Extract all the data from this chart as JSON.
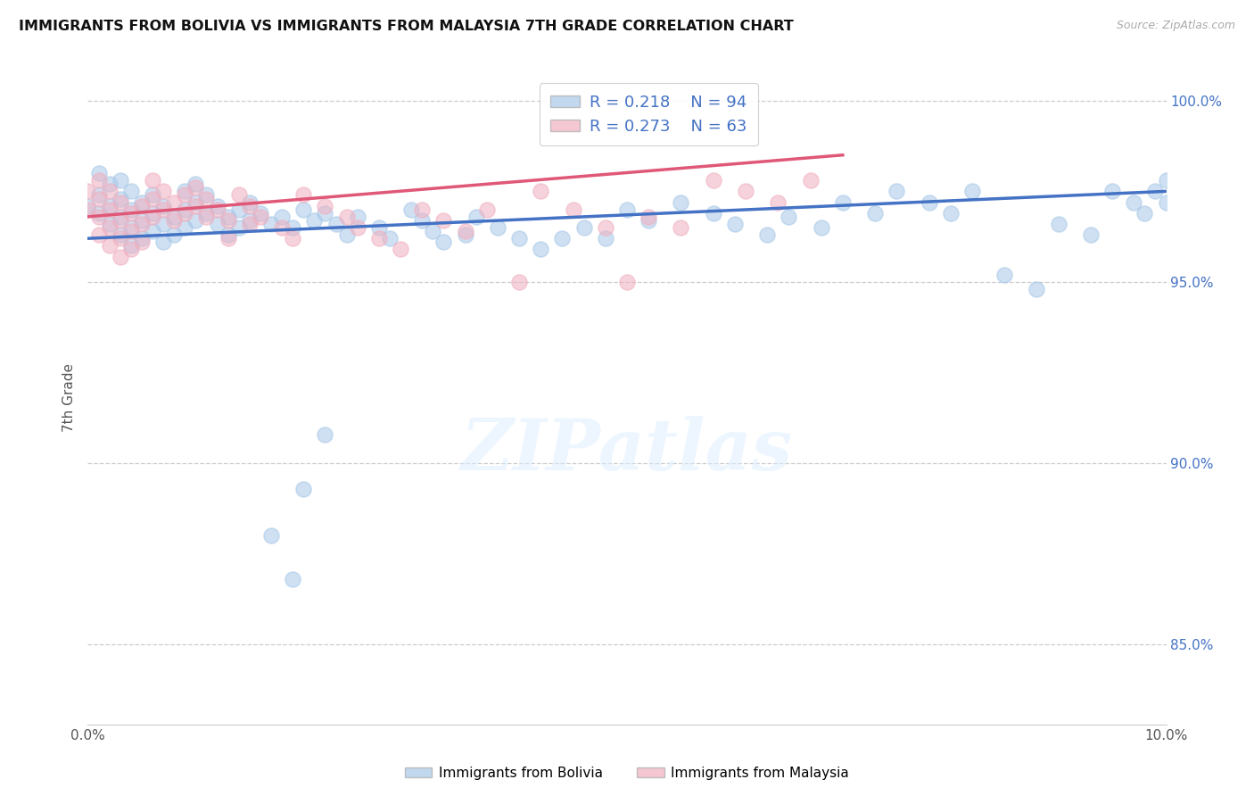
{
  "title": "IMMIGRANTS FROM BOLIVIA VS IMMIGRANTS FROM MALAYSIA 7TH GRADE CORRELATION CHART",
  "source": "Source: ZipAtlas.com",
  "ylabel": "7th Grade",
  "xlim": [
    0.0,
    0.1
  ],
  "ylim": [
    0.828,
    1.008
  ],
  "x_ticks": [
    0.0,
    0.02,
    0.04,
    0.06,
    0.08,
    0.1
  ],
  "x_tick_labels": [
    "0.0%",
    "",
    "",
    "",
    "",
    "10.0%"
  ],
  "y_ticks": [
    0.85,
    0.9,
    0.95,
    1.0
  ],
  "y_tick_labels": [
    "85.0%",
    "90.0%",
    "95.0%",
    "100.0%"
  ],
  "legend_r1": "R = 0.218",
  "legend_n1": "N = 94",
  "legend_r2": "R = 0.273",
  "legend_n2": "N = 63",
  "bolivia_color": "#a8c8e8",
  "malaysia_color": "#f0b0c0",
  "bolivia_line_color": "#4472c4",
  "malaysia_line_color": "#e05878",
  "watermark": "ZIPatlas",
  "bolivia_x": [
    0.0,
    0.001,
    0.001,
    0.001,
    0.002,
    0.002,
    0.002,
    0.003,
    0.003,
    0.003,
    0.003,
    0.004,
    0.004,
    0.004,
    0.004,
    0.005,
    0.005,
    0.005,
    0.006,
    0.006,
    0.006,
    0.007,
    0.007,
    0.007,
    0.008,
    0.008,
    0.009,
    0.009,
    0.009,
    0.01,
    0.01,
    0.01,
    0.011,
    0.011,
    0.012,
    0.012,
    0.013,
    0.013,
    0.014,
    0.014,
    0.015,
    0.015,
    0.016,
    0.017,
    0.018,
    0.019,
    0.02,
    0.021,
    0.022,
    0.023,
    0.024,
    0.025,
    0.027,
    0.028,
    0.03,
    0.031,
    0.032,
    0.033,
    0.035,
    0.036,
    0.038,
    0.04,
    0.042,
    0.044,
    0.046,
    0.048,
    0.05,
    0.052,
    0.055,
    0.058,
    0.06,
    0.063,
    0.065,
    0.068,
    0.07,
    0.073,
    0.075,
    0.078,
    0.08,
    0.082,
    0.085,
    0.088,
    0.09,
    0.093,
    0.095,
    0.097,
    0.098,
    0.099,
    0.1,
    0.1,
    0.017,
    0.019,
    0.02,
    0.022
  ],
  "bolivia_y": [
    0.971,
    0.98,
    0.974,
    0.969,
    0.977,
    0.971,
    0.966,
    0.978,
    0.973,
    0.968,
    0.963,
    0.975,
    0.97,
    0.965,
    0.96,
    0.972,
    0.967,
    0.962,
    0.974,
    0.969,
    0.964,
    0.971,
    0.966,
    0.961,
    0.968,
    0.963,
    0.975,
    0.97,
    0.965,
    0.977,
    0.972,
    0.967,
    0.974,
    0.969,
    0.971,
    0.966,
    0.968,
    0.963,
    0.97,
    0.965,
    0.972,
    0.967,
    0.969,
    0.966,
    0.968,
    0.965,
    0.97,
    0.967,
    0.969,
    0.966,
    0.963,
    0.968,
    0.965,
    0.962,
    0.97,
    0.967,
    0.964,
    0.961,
    0.963,
    0.968,
    0.965,
    0.962,
    0.959,
    0.962,
    0.965,
    0.962,
    0.97,
    0.967,
    0.972,
    0.969,
    0.966,
    0.963,
    0.968,
    0.965,
    0.972,
    0.969,
    0.975,
    0.972,
    0.969,
    0.975,
    0.952,
    0.948,
    0.966,
    0.963,
    0.975,
    0.972,
    0.969,
    0.975,
    0.978,
    0.972,
    0.88,
    0.868,
    0.893,
    0.908
  ],
  "malaysia_x": [
    0.0,
    0.0,
    0.001,
    0.001,
    0.001,
    0.001,
    0.002,
    0.002,
    0.002,
    0.002,
    0.003,
    0.003,
    0.003,
    0.003,
    0.004,
    0.004,
    0.004,
    0.005,
    0.005,
    0.005,
    0.006,
    0.006,
    0.006,
    0.007,
    0.007,
    0.008,
    0.008,
    0.009,
    0.009,
    0.01,
    0.01,
    0.011,
    0.011,
    0.012,
    0.013,
    0.013,
    0.014,
    0.015,
    0.015,
    0.016,
    0.018,
    0.019,
    0.02,
    0.022,
    0.024,
    0.025,
    0.027,
    0.029,
    0.031,
    0.033,
    0.035,
    0.037,
    0.04,
    0.042,
    0.045,
    0.048,
    0.05,
    0.052,
    0.055,
    0.058,
    0.061,
    0.064,
    0.067
  ],
  "malaysia_y": [
    0.975,
    0.97,
    0.978,
    0.973,
    0.968,
    0.963,
    0.975,
    0.97,
    0.965,
    0.96,
    0.972,
    0.967,
    0.962,
    0.957,
    0.969,
    0.964,
    0.959,
    0.971,
    0.966,
    0.961,
    0.978,
    0.973,
    0.968,
    0.975,
    0.97,
    0.972,
    0.967,
    0.974,
    0.969,
    0.976,
    0.971,
    0.973,
    0.968,
    0.97,
    0.967,
    0.962,
    0.974,
    0.971,
    0.966,
    0.968,
    0.965,
    0.962,
    0.974,
    0.971,
    0.968,
    0.965,
    0.962,
    0.959,
    0.97,
    0.967,
    0.964,
    0.97,
    0.95,
    0.975,
    0.97,
    0.965,
    0.95,
    0.968,
    0.965,
    0.978,
    0.975,
    0.972,
    0.978
  ],
  "background_color": "#ffffff",
  "grid_color": "#cccccc"
}
